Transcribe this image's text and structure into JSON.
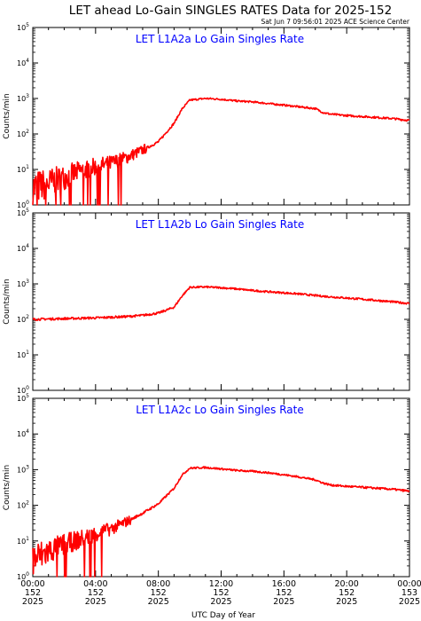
{
  "header": {
    "title": "LET ahead Lo-Gain SINGLES RATES Data for 2025-152",
    "timestamp": "Sat Jun  7 09:56:01 2025 ACE Science Center"
  },
  "colors": {
    "data_line": "#ff0000",
    "panel_title": "#0000ff",
    "axes": "#000000",
    "background": "#ffffff"
  },
  "chart_data": [
    {
      "type": "line",
      "title": "LET L1A2a Lo Gain Singles Rate",
      "ylabel": "Counts/min",
      "y_scale": "log",
      "ylim": [
        1,
        100000
      ],
      "y_ticks": [
        {
          "base": "10",
          "exp": "0"
        },
        {
          "base": "10",
          "exp": "1"
        },
        {
          "base": "10",
          "exp": "2"
        },
        {
          "base": "10",
          "exp": "3"
        },
        {
          "base": "10",
          "exp": "4"
        },
        {
          "base": "10",
          "exp": "5"
        }
      ],
      "xlim_hours": [
        0,
        24
      ],
      "series": [
        {
          "x": [
            0,
            1,
            2,
            3,
            4,
            5,
            6,
            7,
            8,
            9,
            9.5,
            10,
            11,
            12,
            13,
            14,
            15,
            16,
            17,
            18,
            18.5,
            19,
            20,
            21,
            22,
            23,
            24
          ],
          "y": [
            3,
            4,
            6,
            9,
            12,
            15,
            22,
            35,
            60,
            200,
            500,
            900,
            1000,
            950,
            850,
            800,
            720,
            650,
            580,
            520,
            400,
            360,
            330,
            310,
            290,
            270,
            240
          ]
        }
      ]
    },
    {
      "type": "line",
      "title": "LET L1A2b Lo Gain Singles Rate",
      "ylabel": "Counts/min",
      "y_scale": "log",
      "ylim": [
        1,
        100000
      ],
      "y_ticks": [
        {
          "base": "10",
          "exp": "0"
        },
        {
          "base": "10",
          "exp": "1"
        },
        {
          "base": "10",
          "exp": "2"
        },
        {
          "base": "10",
          "exp": "3"
        },
        {
          "base": "10",
          "exp": "4"
        },
        {
          "base": "10",
          "exp": "5"
        }
      ],
      "xlim_hours": [
        0,
        24
      ],
      "series": [
        {
          "x": [
            0,
            2,
            4,
            6,
            7,
            8,
            9,
            9.5,
            10,
            11,
            12,
            13,
            14,
            15,
            16,
            17,
            18,
            19,
            20,
            21,
            22,
            23,
            24
          ],
          "y": [
            100,
            105,
            110,
            120,
            130,
            150,
            220,
            450,
            800,
            820,
            780,
            720,
            650,
            600,
            560,
            520,
            470,
            430,
            400,
            370,
            340,
            310,
            280
          ]
        }
      ]
    },
    {
      "type": "line",
      "title": "LET L1A2c Lo Gain Singles Rate",
      "ylabel": "Counts/min",
      "y_scale": "log",
      "ylim": [
        1,
        100000
      ],
      "y_ticks": [
        {
          "base": "10",
          "exp": "0"
        },
        {
          "base": "10",
          "exp": "1"
        },
        {
          "base": "10",
          "exp": "2"
        },
        {
          "base": "10",
          "exp": "3"
        },
        {
          "base": "10",
          "exp": "4"
        },
        {
          "base": "10",
          "exp": "5"
        }
      ],
      "xlim_hours": [
        0,
        24
      ],
      "series": [
        {
          "x": [
            0,
            1,
            2,
            3,
            4,
            5,
            6,
            7,
            8,
            9,
            9.5,
            10,
            11,
            12,
            13,
            14,
            15,
            16,
            17,
            18,
            18.5,
            19,
            20,
            21,
            22,
            23,
            24
          ],
          "y": [
            3,
            5,
            8,
            11,
            16,
            22,
            35,
            60,
            110,
            300,
            700,
            1100,
            1150,
            1050,
            950,
            900,
            820,
            720,
            620,
            520,
            420,
            370,
            340,
            320,
            300,
            280,
            250
          ]
        }
      ]
    }
  ],
  "x_axis": {
    "label": "UTC Day of Year",
    "ticks": [
      {
        "time": "00:00",
        "doy": "152",
        "year": "2025"
      },
      {
        "time": "04:00",
        "doy": "152",
        "year": "2025"
      },
      {
        "time": "08:00",
        "doy": "152",
        "year": "2025"
      },
      {
        "time": "12:00",
        "doy": "152",
        "year": "2025"
      },
      {
        "time": "16:00",
        "doy": "152",
        "year": "2025"
      },
      {
        "time": "20:00",
        "doy": "152",
        "year": "2025"
      },
      {
        "time": "00:00",
        "doy": "153",
        "year": "2025"
      }
    ]
  }
}
